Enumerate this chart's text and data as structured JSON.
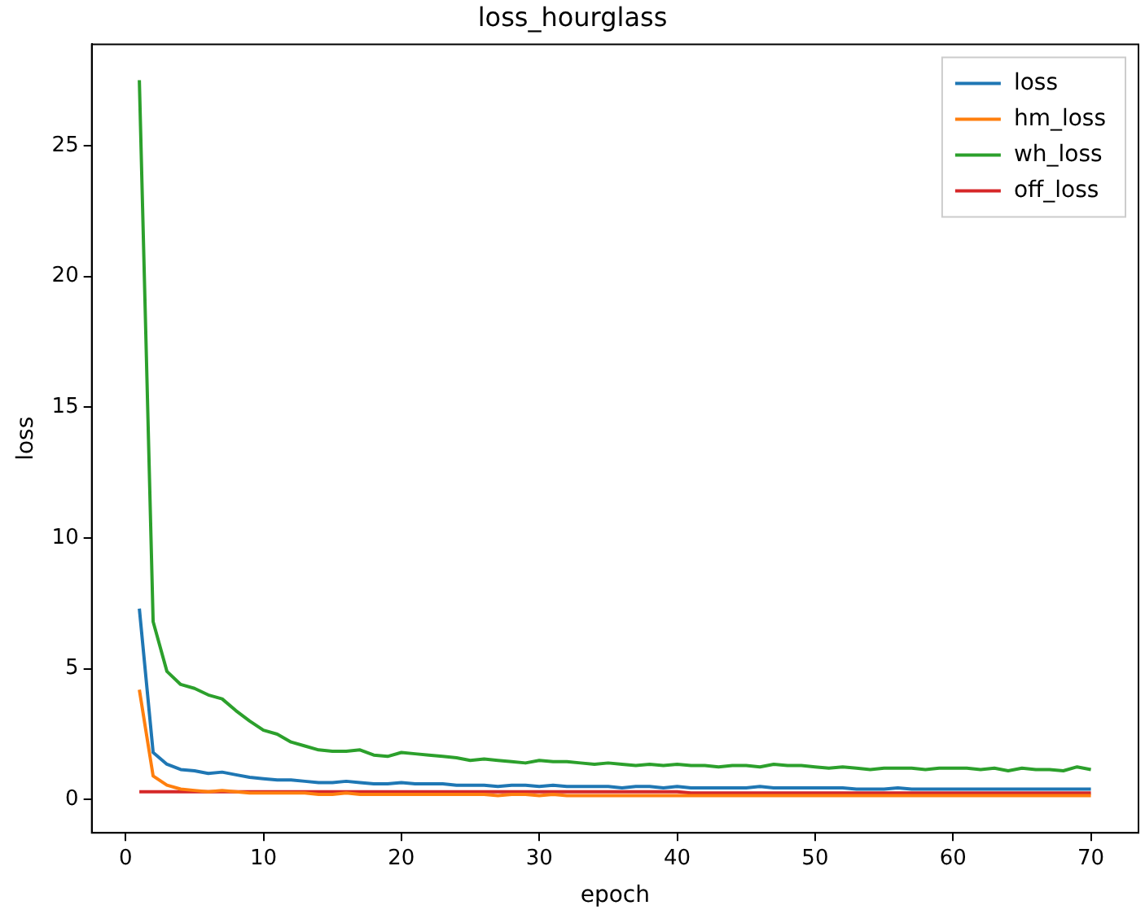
{
  "chart_data": {
    "type": "line",
    "title": "loss_hourglass",
    "xlabel": "epoch",
    "ylabel": "loss",
    "x": [
      1,
      2,
      3,
      4,
      5,
      6,
      7,
      8,
      9,
      10,
      11,
      12,
      13,
      14,
      15,
      16,
      17,
      18,
      19,
      20,
      21,
      22,
      23,
      24,
      25,
      26,
      27,
      28,
      29,
      30,
      31,
      32,
      33,
      34,
      35,
      36,
      37,
      38,
      39,
      40,
      41,
      42,
      43,
      44,
      45,
      46,
      47,
      48,
      49,
      50,
      51,
      52,
      53,
      54,
      55,
      56,
      57,
      58,
      59,
      60,
      61,
      62,
      63,
      64,
      65,
      66,
      67,
      68,
      69,
      70
    ],
    "xlim": [
      -2.45,
      73.45
    ],
    "xticks": [
      0,
      10,
      20,
      30,
      40,
      50,
      60,
      70
    ],
    "ylim": [
      -1.27,
      28.87
    ],
    "yticks": [
      0,
      5,
      10,
      15,
      20,
      25
    ],
    "legend": "top right",
    "grid": false,
    "marker": "none",
    "line_style": "solid",
    "series": [
      {
        "name": "loss",
        "color": "#1f77b4",
        "values": [
          7.3,
          1.8,
          1.35,
          1.15,
          1.1,
          1.0,
          1.05,
          0.95,
          0.85,
          0.8,
          0.75,
          0.75,
          0.7,
          0.65,
          0.65,
          0.7,
          0.65,
          0.6,
          0.6,
          0.65,
          0.6,
          0.6,
          0.6,
          0.55,
          0.55,
          0.55,
          0.5,
          0.55,
          0.55,
          0.5,
          0.55,
          0.5,
          0.5,
          0.5,
          0.5,
          0.45,
          0.5,
          0.5,
          0.45,
          0.5,
          0.45,
          0.45,
          0.45,
          0.45,
          0.45,
          0.5,
          0.45,
          0.45,
          0.45,
          0.45,
          0.45,
          0.45,
          0.4,
          0.4,
          0.4,
          0.45,
          0.4,
          0.4,
          0.4,
          0.4,
          0.4,
          0.4,
          0.4,
          0.4,
          0.4,
          0.4,
          0.4,
          0.4,
          0.4,
          0.4
        ]
      },
      {
        "name": "hm_loss",
        "color": "#ff7f0e",
        "values": [
          4.2,
          0.9,
          0.55,
          0.4,
          0.35,
          0.3,
          0.35,
          0.3,
          0.25,
          0.25,
          0.25,
          0.25,
          0.25,
          0.2,
          0.2,
          0.25,
          0.2,
          0.2,
          0.2,
          0.2,
          0.2,
          0.2,
          0.2,
          0.2,
          0.2,
          0.2,
          0.15,
          0.2,
          0.2,
          0.15,
          0.2,
          0.15,
          0.15,
          0.15,
          0.15,
          0.15,
          0.15,
          0.15,
          0.15,
          0.15,
          0.15,
          0.15,
          0.15,
          0.15,
          0.15,
          0.15,
          0.15,
          0.15,
          0.15,
          0.15,
          0.15,
          0.15,
          0.15,
          0.15,
          0.15,
          0.15,
          0.15,
          0.15,
          0.15,
          0.15,
          0.15,
          0.15,
          0.15,
          0.15,
          0.15,
          0.15,
          0.15,
          0.15,
          0.15,
          0.15
        ]
      },
      {
        "name": "wh_loss",
        "color": "#2ca02c",
        "values": [
          27.5,
          6.8,
          4.9,
          4.4,
          4.25,
          4.0,
          3.85,
          3.4,
          3.0,
          2.65,
          2.5,
          2.2,
          2.05,
          1.9,
          1.85,
          1.85,
          1.9,
          1.7,
          1.65,
          1.8,
          1.75,
          1.7,
          1.65,
          1.6,
          1.5,
          1.55,
          1.5,
          1.45,
          1.4,
          1.5,
          1.45,
          1.45,
          1.4,
          1.35,
          1.4,
          1.35,
          1.3,
          1.35,
          1.3,
          1.35,
          1.3,
          1.3,
          1.25,
          1.3,
          1.3,
          1.25,
          1.35,
          1.3,
          1.3,
          1.25,
          1.2,
          1.25,
          1.2,
          1.15,
          1.2,
          1.2,
          1.2,
          1.15,
          1.2,
          1.2,
          1.2,
          1.15,
          1.2,
          1.1,
          1.2,
          1.15,
          1.15,
          1.1,
          1.25,
          1.15
        ]
      },
      {
        "name": "off_loss",
        "color": "#d62728",
        "values": [
          0.3,
          0.3,
          0.3,
          0.3,
          0.3,
          0.3,
          0.3,
          0.3,
          0.3,
          0.3,
          0.3,
          0.3,
          0.3,
          0.3,
          0.3,
          0.3,
          0.3,
          0.3,
          0.3,
          0.3,
          0.3,
          0.3,
          0.3,
          0.3,
          0.3,
          0.3,
          0.3,
          0.3,
          0.3,
          0.3,
          0.3,
          0.3,
          0.3,
          0.3,
          0.3,
          0.3,
          0.3,
          0.3,
          0.3,
          0.3,
          0.25,
          0.25,
          0.25,
          0.25,
          0.25,
          0.25,
          0.25,
          0.25,
          0.25,
          0.25,
          0.25,
          0.25,
          0.25,
          0.25,
          0.25,
          0.25,
          0.25,
          0.25,
          0.25,
          0.25,
          0.25,
          0.25,
          0.25,
          0.25,
          0.25,
          0.25,
          0.25,
          0.25,
          0.25,
          0.25
        ]
      }
    ]
  }
}
